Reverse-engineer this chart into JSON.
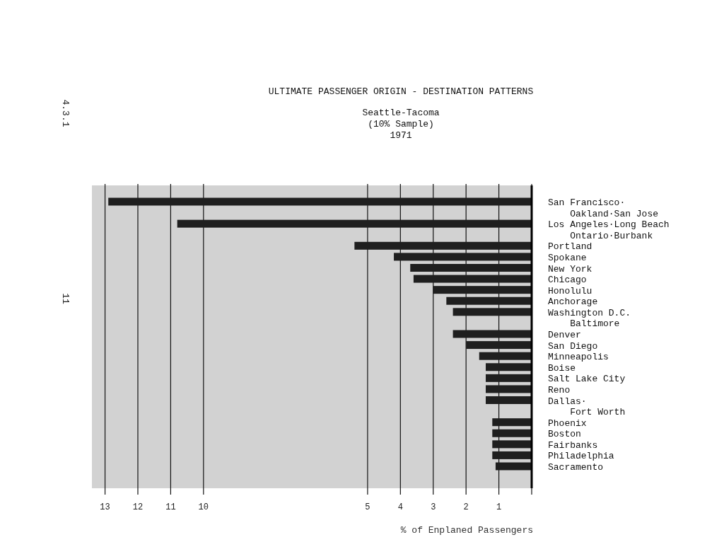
{
  "chart_data": {
    "type": "bar",
    "orientation": "horizontal",
    "title": "ULTIMATE PASSENGER ORIGIN - DESTINATION PATTERNS",
    "subtitle": "Seattle-Tacoma\n(10% Sample)\n1971",
    "xlabel": "% of Enplaned Passengers",
    "annotations": [
      "4.3.1",
      "11"
    ],
    "categories": [
      "San Francisco·\nOakland·San Jose",
      "Los Angeles·Long Beach\nOntario·Burbank",
      "Portland",
      "Spokane",
      "New York",
      "Chicago",
      "Honolulu",
      "Anchorage",
      "Washington D.C.\nBaltimore",
      "Denver",
      "San Diego",
      "Minneapolis",
      "Boise",
      "Salt Lake City",
      "Reno",
      "Dallas·\nFort Worth",
      "Phoenix",
      "Boston",
      "Fairbanks",
      "Philadelphia",
      "Sacramento"
    ],
    "values": [
      12.9,
      10.8,
      5.4,
      4.2,
      3.7,
      3.6,
      3.0,
      2.6,
      2.4,
      2.4,
      2.0,
      1.6,
      1.4,
      1.4,
      1.4,
      1.4,
      1.2,
      1.2,
      1.2,
      1.2,
      1.1
    ],
    "color": "#1f1f1f",
    "xlim": [
      13.4,
      0
    ],
    "xticks": [
      {
        "value": 0,
        "label": null
      },
      1,
      2,
      3,
      4,
      5,
      10,
      11,
      12,
      13
    ],
    "grid": "x"
  }
}
